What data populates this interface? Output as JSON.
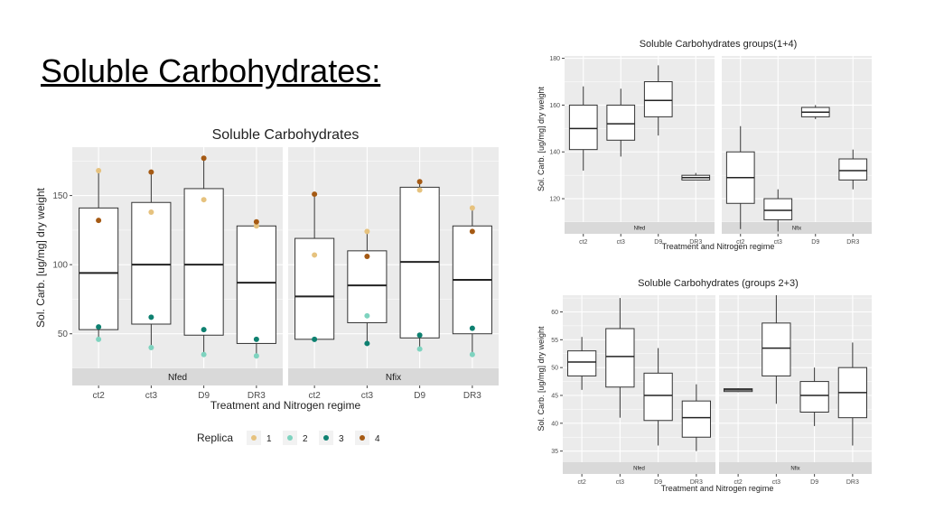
{
  "slide": {
    "title": "Soluble Carbohydrates:"
  },
  "chart_data": [
    {
      "type": "box",
      "title": "Soluble Carbohydrates",
      "xlabel": "Treatment and Nitrogen regime",
      "ylabel": "Sol. Carb. [ug/mg] dry weight",
      "ylim": [
        25,
        185
      ],
      "yticks": [
        50,
        100,
        150
      ],
      "facets": [
        "Nfed",
        "Nfix"
      ],
      "categories": [
        "ct2",
        "ct3",
        "D9",
        "DR3"
      ],
      "boxes": {
        "Nfed": [
          {
            "min": 46,
            "q1": 53,
            "median": 94,
            "q3": 141,
            "max": 168
          },
          {
            "min": 40,
            "q1": 57,
            "median": 100,
            "q3": 145,
            "max": 167
          },
          {
            "min": 35,
            "q1": 49,
            "median": 100,
            "q3": 155,
            "max": 177
          },
          {
            "min": 34,
            "q1": 43,
            "median": 87,
            "q3": 128,
            "max": 131
          }
        ],
        "Nfix": [
          {
            "min": 46,
            "q1": 46,
            "median": 77,
            "q3": 119,
            "max": 151
          },
          {
            "min": 43,
            "q1": 58,
            "median": 85,
            "q3": 110,
            "max": 124
          },
          {
            "min": 39,
            "q1": 47,
            "median": 102,
            "q3": 156,
            "max": 160
          },
          {
            "min": 35,
            "q1": 50,
            "median": 89,
            "q3": 128,
            "max": 141
          }
        ]
      },
      "points": {
        "Nfed": [
          [
            168,
            46,
            55,
            132
          ],
          [
            138,
            40,
            62,
            167
          ],
          [
            147,
            35,
            53,
            177
          ],
          [
            128,
            34,
            46,
            131
          ]
        ],
        "Nfix": [
          [
            107,
            46,
            46,
            151
          ],
          [
            124,
            63,
            43,
            106
          ],
          [
            154,
            39,
            49,
            160
          ],
          [
            141,
            35,
            54,
            124
          ]
        ]
      },
      "legend": {
        "title": "Replica",
        "position": "bottom",
        "entries": [
          {
            "label": "1",
            "color": "#E6C27E"
          },
          {
            "label": "2",
            "color": "#7ED3BF"
          },
          {
            "label": "3",
            "color": "#0E8070"
          },
          {
            "label": "4",
            "color": "#A55A14"
          }
        ]
      },
      "grid": true
    },
    {
      "type": "box",
      "title": "Soluble Carbohydrates groups(1+4)",
      "xlabel": "Treatment and Nitrogen regime",
      "ylabel": "Sol. Carb. [ug/mg] dry weight",
      "ylim": [
        110,
        181
      ],
      "yticks": [
        120,
        140,
        160,
        180
      ],
      "facets": [
        "Nfed",
        "Nfix"
      ],
      "categories": [
        "ct2",
        "ct3",
        "D9",
        "DR3"
      ],
      "boxes": {
        "Nfed": [
          {
            "min": 132,
            "q1": 141,
            "median": 150,
            "q3": 160,
            "max": 168
          },
          {
            "min": 138,
            "q1": 145,
            "median": 152,
            "q3": 160,
            "max": 167
          },
          {
            "min": 147,
            "q1": 155,
            "median": 162,
            "q3": 170,
            "max": 177
          },
          {
            "min": 128,
            "q1": 128,
            "median": 129,
            "q3": 130,
            "max": 131
          }
        ],
        "Nfix": [
          {
            "min": 107,
            "q1": 118,
            "median": 129,
            "q3": 140,
            "max": 151
          },
          {
            "min": 106,
            "q1": 111,
            "median": 115,
            "q3": 120,
            "max": 124
          },
          {
            "min": 154,
            "q1": 155,
            "median": 157,
            "q3": 159,
            "max": 160
          },
          {
            "min": 124,
            "q1": 128,
            "median": 132,
            "q3": 137,
            "max": 141
          }
        ]
      },
      "grid": true
    },
    {
      "type": "box",
      "title": "Soluble Carbohydrates (groups 2+3)",
      "xlabel": "Treatment and Nitrogen regime",
      "ylabel": "Sol. Carb. [ug/mg] dry weight",
      "ylim": [
        33,
        63
      ],
      "yticks": [
        35,
        40,
        45,
        50,
        55,
        60
      ],
      "facets": [
        "Nfed",
        "Nfix"
      ],
      "categories": [
        "ct2",
        "ct3",
        "D9",
        "DR3"
      ],
      "boxes": {
        "Nfed": [
          {
            "min": 46,
            "q1": 48.5,
            "median": 51,
            "q3": 53,
            "max": 55.5
          },
          {
            "min": 41,
            "q1": 46.5,
            "median": 52,
            "q3": 57,
            "max": 62.5
          },
          {
            "min": 36,
            "q1": 40.5,
            "median": 45,
            "q3": 49,
            "max": 53.5
          },
          {
            "min": 35,
            "q1": 37.5,
            "median": 41,
            "q3": 44,
            "max": 47
          }
        ],
        "Nfix": [
          {
            "min": 45.6,
            "q1": 45.7,
            "median": 46,
            "q3": 46.2,
            "max": 46.3
          },
          {
            "min": 43.5,
            "q1": 48.5,
            "median": 53.5,
            "q3": 58,
            "max": 63
          },
          {
            "min": 39.5,
            "q1": 42,
            "median": 45,
            "q3": 47.5,
            "max": 50
          },
          {
            "min": 36,
            "q1": 41,
            "median": 45.5,
            "q3": 50,
            "max": 54.5
          }
        ]
      },
      "grid": true
    }
  ]
}
